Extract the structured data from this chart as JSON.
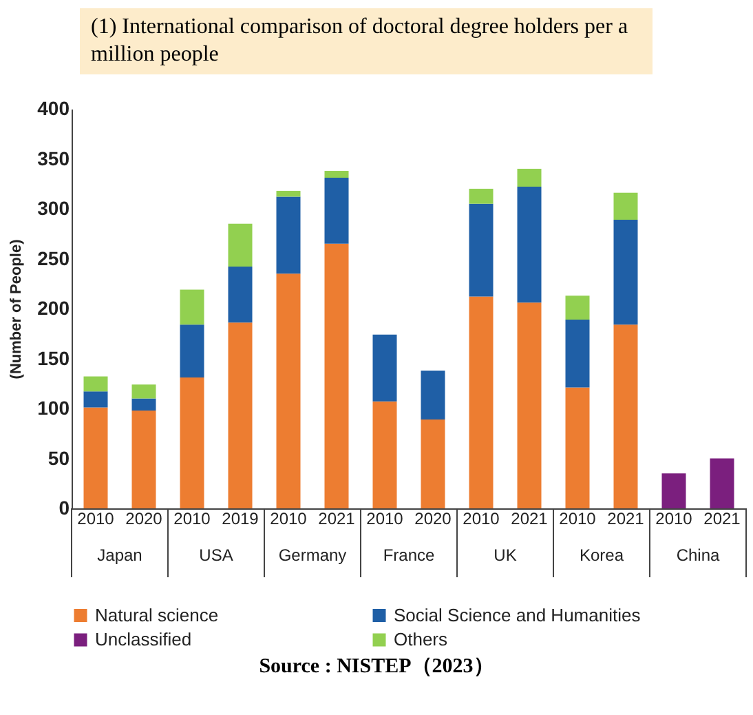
{
  "chart_data": {
    "type": "bar",
    "title": "(1) International comparison of doctoral degree holders per a million people",
    "ylabel": "(Number of People)",
    "categories": [
      "2010",
      "2020",
      "2010",
      "2019",
      "2010",
      "2021",
      "2010",
      "2020",
      "2010",
      "2021",
      "2010",
      "2021",
      "2010",
      "2021"
    ],
    "stacked": true,
    "series": [
      {
        "name": "Natural science",
        "color": "#ed7d31",
        "values": [
          101,
          98,
          131,
          186,
          235,
          265,
          107,
          89,
          212,
          206,
          121,
          184,
          null,
          null
        ]
      },
      {
        "name": "Social Science and Humanities",
        "color": "#1f5fa6",
        "values": [
          16,
          12,
          53,
          56,
          77,
          66,
          67,
          49,
          93,
          116,
          68,
          105,
          null,
          null
        ]
      },
      {
        "name": "Unclassified",
        "color": "#7b1f7e",
        "values": [
          null,
          null,
          null,
          null,
          null,
          null,
          null,
          null,
          null,
          null,
          null,
          null,
          35,
          50
        ]
      },
      {
        "name": "Others",
        "color": "#92d050",
        "values": [
          15,
          14,
          35,
          43,
          6,
          7,
          null,
          null,
          15,
          18,
          24,
          27,
          null,
          null
        ]
      }
    ],
    "ylim": [
      0,
      400
    ],
    "yticks": [
      0,
      50,
      100,
      150,
      200,
      250,
      300,
      350,
      400
    ],
    "grid": false,
    "legend": "bottom",
    "annotations": [
      "Japan",
      "USA",
      "Germany",
      "France",
      "UK",
      "Korea",
      "China",
      "Source : NISTEP（2023）"
    ]
  }
}
